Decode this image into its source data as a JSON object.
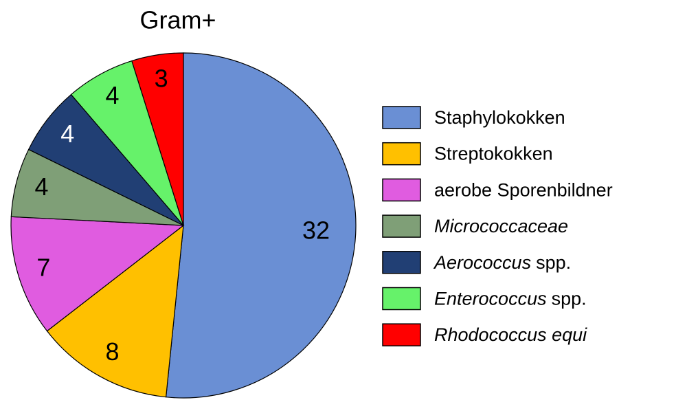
{
  "chart_data": {
    "type": "pie",
    "title": "Gram+",
    "categories": [
      [
        "Staphylokokken"
      ],
      [
        "Streptokokken"
      ],
      [
        "aerobe Sporenbildner"
      ],
      [
        "Micrococcaceae"
      ],
      [
        "Aerococcus",
        "spp."
      ],
      [
        "Enterococcus",
        "spp."
      ],
      [
        "Rhodococcus equi"
      ]
    ],
    "legend_italic": [
      [
        false
      ],
      [
        false
      ],
      [
        false
      ],
      [
        true
      ],
      [
        true,
        false
      ],
      [
        true,
        false
      ],
      [
        true
      ]
    ],
    "values": [
      32,
      8,
      7,
      4,
      4,
      4,
      3
    ],
    "colors": [
      "#6a8fd4",
      "#ffc000",
      "#e05ce0",
      "#7f9f77",
      "#213f74",
      "#66f26a",
      "#ff0000"
    ],
    "label_colors": [
      "#000000",
      "#000000",
      "#000000",
      "#000000",
      "#ffffff",
      "#000000",
      "#000000"
    ],
    "start_angle": 0,
    "direction": "clockwise",
    "legend": "right"
  }
}
